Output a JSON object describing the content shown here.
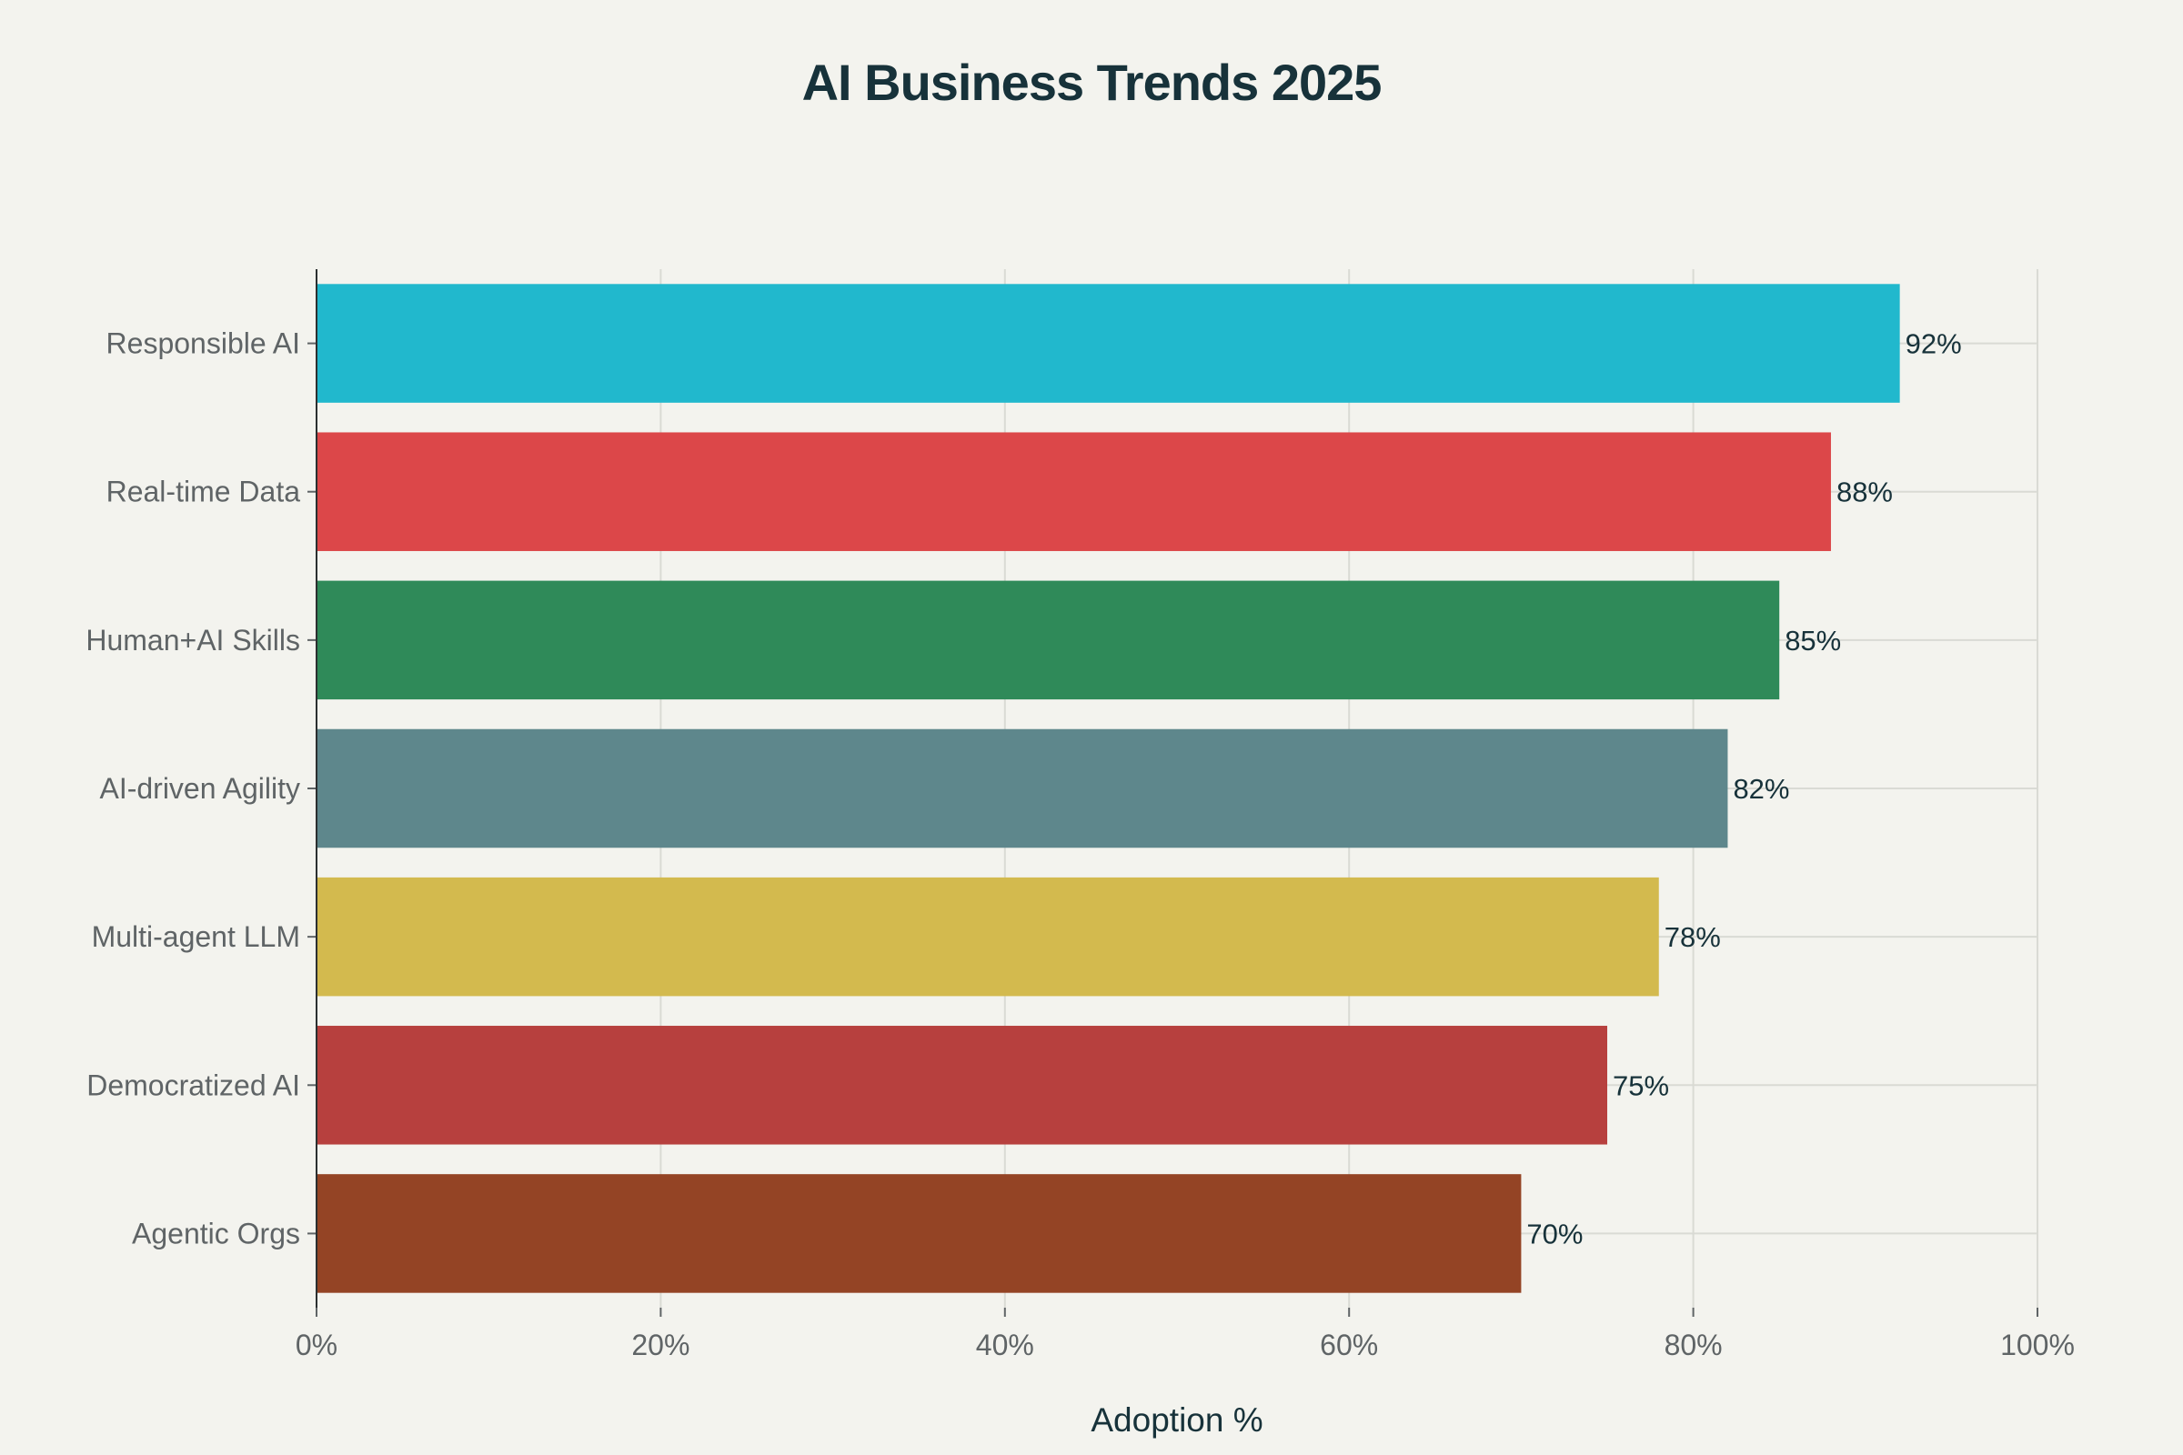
{
  "chart_data": {
    "type": "bar",
    "orientation": "horizontal",
    "title": "AI Business Trends 2025",
    "xlabel": "Adoption %",
    "ylabel": "",
    "xlim": [
      0,
      100
    ],
    "xticks": [
      0,
      20,
      40,
      60,
      80,
      100
    ],
    "tick_suffix": "%",
    "grid": true,
    "legend": "none",
    "categories": [
      "Responsible AI",
      "Real-time Data",
      "Human+AI Skills",
      "AI-driven Agility",
      "Multi-agent LLM",
      "Democratized AI",
      "Agentic Orgs"
    ],
    "values": [
      92,
      88,
      85,
      82,
      78,
      75,
      70
    ],
    "colors": [
      "#21b8cd",
      "#dc4749",
      "#2f8a59",
      "#5e878c",
      "#d3ba4e",
      "#b7403e",
      "#944425"
    ],
    "data_labels": [
      "92%",
      "88%",
      "85%",
      "82%",
      "78%",
      "75%",
      "70%"
    ]
  }
}
